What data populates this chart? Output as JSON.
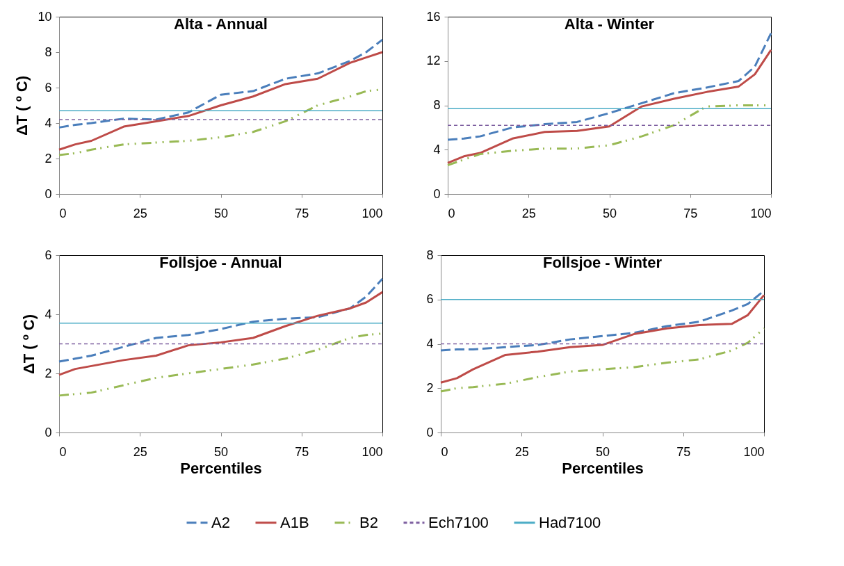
{
  "chart_data": [
    {
      "type": "line",
      "title": "Alta - Annual",
      "ylabel": "ΔT ( º C)",
      "x": [
        0,
        5,
        10,
        20,
        30,
        40,
        50,
        60,
        70,
        80,
        90,
        95,
        100
      ],
      "xlim": [
        0,
        100
      ],
      "xticks": [
        0,
        25,
        50,
        75,
        100
      ],
      "ylim": [
        0,
        10
      ],
      "yticks": [
        0,
        2,
        4,
        6,
        8,
        10
      ],
      "legend": "bottom",
      "series": [
        {
          "name": "A2",
          "color": "#4a7ebb",
          "line_style": "dashed",
          "values": [
            3.75,
            3.9,
            4.0,
            4.25,
            4.2,
            4.6,
            5.6,
            5.8,
            6.5,
            6.8,
            7.5,
            8.0,
            8.7
          ]
        },
        {
          "name": "A1B",
          "color": "#be4b48",
          "line_style": "solid",
          "values": [
            2.5,
            2.8,
            3.0,
            3.8,
            4.1,
            4.4,
            5.0,
            5.5,
            6.2,
            6.5,
            7.4,
            7.7,
            8.0
          ]
        },
        {
          "name": "B2",
          "color": "#98b954",
          "line_style": "dashdot",
          "values": [
            2.2,
            2.3,
            2.5,
            2.8,
            2.9,
            3.0,
            3.2,
            3.5,
            4.1,
            5.0,
            5.5,
            5.8,
            5.9
          ]
        },
        {
          "name": "Ech7100",
          "color": "#7d5fa0",
          "line_style": "dashed",
          "values": [
            4.2,
            4.2,
            4.2,
            4.2,
            4.2,
            4.2,
            4.2,
            4.2,
            4.2,
            4.2,
            4.2,
            4.2,
            4.2
          ]
        },
        {
          "name": "Had7100",
          "color": "#4bacc6",
          "line_style": "solid",
          "values": [
            4.7,
            4.7,
            4.7,
            4.7,
            4.7,
            4.7,
            4.7,
            4.7,
            4.7,
            4.7,
            4.7,
            4.7,
            4.7
          ]
        }
      ]
    },
    {
      "type": "line",
      "title": "Alta - Winter",
      "x": [
        0,
        5,
        10,
        20,
        30,
        40,
        50,
        60,
        70,
        80,
        90,
        95,
        100
      ],
      "xlim": [
        0,
        100
      ],
      "xticks": [
        0,
        25,
        50,
        75,
        100
      ],
      "ylim": [
        0,
        16
      ],
      "yticks": [
        0,
        4,
        8,
        12,
        16
      ],
      "legend": "bottom",
      "series": [
        {
          "name": "A2",
          "color": "#4a7ebb",
          "line_style": "dashed",
          "values": [
            4.9,
            5.0,
            5.2,
            6.0,
            6.3,
            6.5,
            7.3,
            8.2,
            9.1,
            9.6,
            10.2,
            11.5,
            14.5
          ]
        },
        {
          "name": "A1B",
          "color": "#be4b48",
          "line_style": "solid",
          "values": [
            2.8,
            3.4,
            3.7,
            5.0,
            5.6,
            5.7,
            6.1,
            7.9,
            8.6,
            9.2,
            9.7,
            10.8,
            13.0
          ]
        },
        {
          "name": "B2",
          "color": "#98b954",
          "line_style": "dashdot",
          "values": [
            2.6,
            3.1,
            3.6,
            3.9,
            4.1,
            4.1,
            4.4,
            5.2,
            6.2,
            7.9,
            8.0,
            8.0,
            8.0
          ]
        },
        {
          "name": "Ech7100",
          "color": "#7d5fa0",
          "line_style": "dashed",
          "values": [
            6.2,
            6.2,
            6.2,
            6.2,
            6.2,
            6.2,
            6.2,
            6.2,
            6.2,
            6.2,
            6.2,
            6.2,
            6.2
          ]
        },
        {
          "name": "Had7100",
          "color": "#4bacc6",
          "line_style": "solid",
          "values": [
            7.7,
            7.7,
            7.7,
            7.7,
            7.7,
            7.7,
            7.7,
            7.7,
            7.7,
            7.7,
            7.7,
            7.7,
            7.7
          ]
        }
      ]
    },
    {
      "type": "line",
      "title": "Follsjoe - Annual",
      "ylabel": "ΔT ( º C)",
      "xlabel": "Percentiles",
      "x": [
        0,
        5,
        10,
        20,
        30,
        40,
        50,
        60,
        70,
        80,
        90,
        95,
        100
      ],
      "xlim": [
        0,
        100
      ],
      "xticks": [
        0,
        25,
        50,
        75,
        100
      ],
      "ylim": [
        0,
        6
      ],
      "yticks": [
        0,
        2,
        4,
        6
      ],
      "legend": "bottom",
      "series": [
        {
          "name": "A2",
          "color": "#4a7ebb",
          "line_style": "dashed",
          "values": [
            2.4,
            2.5,
            2.6,
            2.9,
            3.2,
            3.3,
            3.5,
            3.75,
            3.85,
            3.9,
            4.2,
            4.6,
            5.2
          ]
        },
        {
          "name": "A1B",
          "color": "#be4b48",
          "line_style": "solid",
          "values": [
            1.95,
            2.15,
            2.25,
            2.45,
            2.6,
            2.95,
            3.05,
            3.2,
            3.6,
            3.95,
            4.2,
            4.4,
            4.75
          ]
        },
        {
          "name": "B2",
          "color": "#98b954",
          "line_style": "dashdot",
          "values": [
            1.25,
            1.3,
            1.35,
            1.6,
            1.85,
            2.0,
            2.15,
            2.3,
            2.5,
            2.8,
            3.2,
            3.3,
            3.35
          ]
        },
        {
          "name": "Ech7100",
          "color": "#7d5fa0",
          "line_style": "dashed",
          "values": [
            3.0,
            3.0,
            3.0,
            3.0,
            3.0,
            3.0,
            3.0,
            3.0,
            3.0,
            3.0,
            3.0,
            3.0,
            3.0
          ]
        },
        {
          "name": "Had7100",
          "color": "#4bacc6",
          "line_style": "solid",
          "values": [
            3.7,
            3.7,
            3.7,
            3.7,
            3.7,
            3.7,
            3.7,
            3.7,
            3.7,
            3.7,
            3.7,
            3.7,
            3.7
          ]
        }
      ]
    },
    {
      "type": "line",
      "title": "Follsjoe - Winter",
      "xlabel": "Percentiles",
      "x": [
        0,
        5,
        10,
        20,
        30,
        40,
        50,
        60,
        70,
        80,
        90,
        95,
        100
      ],
      "xlim": [
        0,
        100
      ],
      "xticks": [
        0,
        25,
        50,
        75,
        100
      ],
      "ylim": [
        0,
        8
      ],
      "yticks": [
        0,
        2,
        4,
        6,
        8
      ],
      "legend": "bottom",
      "series": [
        {
          "name": "A2",
          "color": "#4a7ebb",
          "line_style": "dashed",
          "values": [
            3.7,
            3.75,
            3.75,
            3.85,
            3.95,
            4.2,
            4.35,
            4.5,
            4.8,
            5.0,
            5.5,
            5.8,
            6.4
          ]
        },
        {
          "name": "A1B",
          "color": "#be4b48",
          "line_style": "solid",
          "values": [
            2.25,
            2.45,
            2.85,
            3.5,
            3.65,
            3.85,
            3.95,
            4.45,
            4.7,
            4.85,
            4.9,
            5.3,
            6.2
          ]
        },
        {
          "name": "B2",
          "color": "#98b954",
          "line_style": "dashdot",
          "values": [
            1.85,
            2.0,
            2.05,
            2.2,
            2.5,
            2.75,
            2.85,
            2.95,
            3.15,
            3.3,
            3.7,
            4.05,
            4.7
          ]
        },
        {
          "name": "Ech7100",
          "color": "#7d5fa0",
          "line_style": "dashed",
          "values": [
            4.0,
            4.0,
            4.0,
            4.0,
            4.0,
            4.0,
            4.0,
            4.0,
            4.0,
            4.0,
            4.0,
            4.0,
            4.0
          ]
        },
        {
          "name": "Had7100",
          "color": "#4bacc6",
          "line_style": "solid",
          "values": [
            6.0,
            6.0,
            6.0,
            6.0,
            6.0,
            6.0,
            6.0,
            6.0,
            6.0,
            6.0,
            6.0,
            6.0,
            6.0
          ]
        }
      ]
    }
  ]
}
